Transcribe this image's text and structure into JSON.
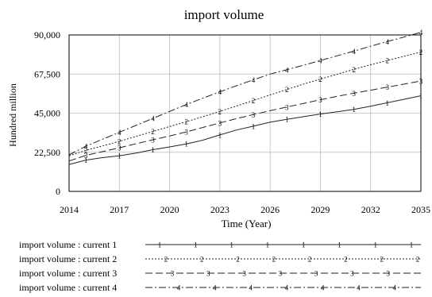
{
  "chart_data": {
    "type": "line",
    "title": "import volume",
    "xlabel": "Time (Year)",
    "ylabel": "Hundred million",
    "xlim": [
      2014,
      2035
    ],
    "ylim": [
      0,
      90000
    ],
    "x_ticks": [
      "2014",
      "2017",
      "2020",
      "2023",
      "2026",
      "2029",
      "2032",
      "2035"
    ],
    "y_ticks": [
      "0",
      "22,500",
      "45,000",
      "67,500",
      "90,000"
    ],
    "grid": true,
    "legend_position": "bottom",
    "x": [
      2014,
      2015,
      2016,
      2017,
      2018,
      2019,
      2020,
      2021,
      2022,
      2023,
      2024,
      2025,
      2026,
      2027,
      2028,
      2029,
      2030,
      2031,
      2032,
      2033,
      2034,
      2035
    ],
    "series": [
      {
        "name": "import volume : current 1",
        "marker": "1",
        "dash": "solid",
        "values": [
          15500,
          18000,
          19400,
          20500,
          22000,
          24000,
          25600,
          27300,
          29500,
          32500,
          35300,
          37500,
          39800,
          41500,
          43000,
          44500,
          45800,
          47200,
          49000,
          51000,
          53000,
          55000
        ]
      },
      {
        "name": "import volume : current 2",
        "marker": "2",
        "dash": "dotted",
        "values": [
          20500,
          23600,
          26200,
          28800,
          31600,
          34500,
          37300,
          40100,
          43000,
          46000,
          49100,
          52300,
          55500,
          58600,
          61700,
          64600,
          67400,
          70200,
          72800,
          75300,
          77700,
          80200
        ]
      },
      {
        "name": "import volume : current 3",
        "marker": "3",
        "dash": "longdash",
        "values": [
          17500,
          20700,
          22900,
          25100,
          27400,
          29700,
          31900,
          34200,
          36800,
          39400,
          41900,
          44200,
          46400,
          48500,
          50600,
          52700,
          54700,
          56500,
          58200,
          60000,
          61700,
          63500
        ]
      },
      {
        "name": "import volume : current 4",
        "marker": "4",
        "dash": "dashdot",
        "values": [
          21000,
          26000,
          30000,
          34000,
          38000,
          42000,
          46000,
          50000,
          53700,
          57300,
          60800,
          64200,
          67500,
          70000,
          72600,
          75300,
          78000,
          80700,
          83500,
          86200,
          88800,
          91500
        ]
      }
    ]
  }
}
